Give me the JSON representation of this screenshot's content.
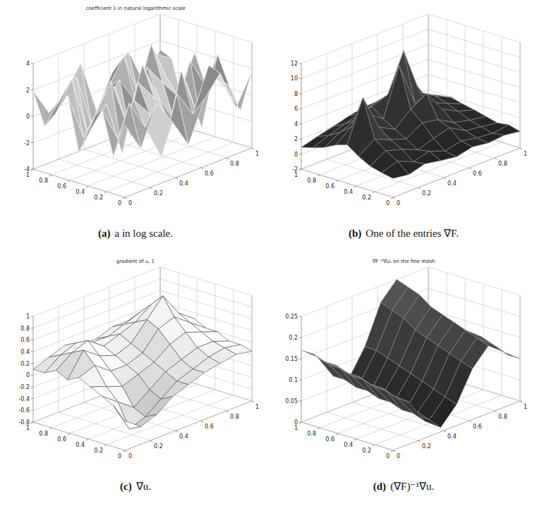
{
  "chart_data": [
    {
      "type": "surface",
      "title": "coefficient 1 in natural logarithmic scale",
      "caption_label": "(a)",
      "caption": "a in log scale.",
      "color": "#a8a8a8",
      "grid": true,
      "x": [
        0,
        0.125,
        0.25,
        0.375,
        0.5,
        0.625,
        0.75,
        0.875,
        1
      ],
      "y": [
        0,
        0.125,
        0.25,
        0.375,
        0.5,
        0.625,
        0.75,
        0.875,
        1
      ],
      "xlim": [
        0,
        1
      ],
      "ylim": [
        0,
        1
      ],
      "zlim": [
        -4,
        4
      ],
      "xticks": [
        0,
        0.2,
        0.4,
        0.6,
        0.8,
        1
      ],
      "yticks": [
        0,
        0.2,
        0.4,
        0.6,
        0.8,
        1
      ],
      "zticks": [
        -4,
        -2,
        0,
        2,
        4
      ],
      "z": [
        [
          1.5,
          -0.8,
          2.2,
          0.3,
          -1.9,
          1.1,
          2.6,
          -0.5,
          1.8
        ],
        [
          -1.2,
          2.4,
          0.1,
          -2.6,
          1.7,
          -0.3,
          2.9,
          0.8,
          -1.4
        ],
        [
          2.1,
          -0.6,
          1.9,
          0.4,
          -2.2,
          2.7,
          -1.1,
          1.5,
          0.2
        ],
        [
          0.3,
          1.8,
          -2.4,
          2.5,
          0.9,
          -1.6,
          1.2,
          -2.8,
          2.3
        ],
        [
          -1.7,
          0.6,
          2.8,
          -0.9,
          3.1,
          0.2,
          -2.1,
          2.0,
          -0.4
        ],
        [
          2.4,
          -1.3,
          0.7,
          1.6,
          -2.7,
          2.2,
          0.5,
          -1.0,
          1.9
        ],
        [
          0.8,
          2.9,
          -1.8,
          0.3,
          1.4,
          -0.7,
          3.2,
          0.1,
          -2.3
        ],
        [
          -0.5,
          1.1,
          2.3,
          -2.0,
          0.6,
          2.5,
          -1.4,
          1.7,
          0.9
        ],
        [
          1.9,
          -0.2,
          0.8,
          2.6,
          -1.5,
          1.0,
          2.1,
          -0.8,
          1.3
        ]
      ]
    },
    {
      "type": "surface",
      "caption_label": "(b)",
      "caption": "One of the entries ∇F.",
      "color": "#1e1e1e",
      "grid": true,
      "x": [
        0,
        0.125,
        0.25,
        0.375,
        0.5,
        0.625,
        0.75,
        0.875,
        1
      ],
      "y": [
        0,
        0.125,
        0.25,
        0.375,
        0.5,
        0.625,
        0.75,
        0.875,
        1
      ],
      "xlim": [
        0,
        1
      ],
      "ylim": [
        0,
        1
      ],
      "zlim": [
        -2,
        12
      ],
      "xticks": [
        0,
        0.2,
        0.4,
        0.6,
        0.8,
        1
      ],
      "yticks": [
        0,
        0.2,
        0.4,
        0.6,
        0.8,
        1
      ],
      "zticks": [
        -2,
        0,
        2,
        4,
        6,
        8,
        10,
        12
      ],
      "z": [
        [
          0.5,
          0.2,
          0.8,
          0.4,
          0.1,
          0.6,
          0.3,
          0.5,
          0.2
        ],
        [
          0.8,
          1.5,
          0.6,
          1.2,
          0.4,
          0.9,
          0.5,
          0.3,
          0.6
        ],
        [
          1.2,
          2.4,
          1.8,
          0.9,
          1.6,
          2.2,
          1.0,
          0.7,
          0.4
        ],
        [
          2.0,
          3.5,
          2.6,
          1.9,
          3.2,
          2.8,
          1.6,
          1.1,
          0.8
        ],
        [
          3.1,
          8.5,
          3.8,
          2.7,
          4.5,
          5.8,
          2.9,
          1.8,
          1.2
        ],
        [
          2.6,
          4.2,
          5.1,
          3.6,
          9.8,
          4.0,
          3.3,
          2.4,
          1.5
        ],
        [
          1.8,
          3.0,
          3.9,
          4.8,
          5.5,
          10.5,
          4.2,
          2.9,
          1.9
        ],
        [
          1.3,
          2.1,
          2.8,
          3.4,
          4.1,
          3.7,
          6.2,
          2.6,
          1.7
        ],
        [
          0.9,
          1.5,
          2.0,
          2.6,
          3.0,
          2.8,
          2.4,
          1.9,
          1.4
        ]
      ]
    },
    {
      "type": "surface",
      "title": "gradient of u, 1",
      "caption_label": "(c)",
      "caption": "∇u.",
      "color": "#f2f2f2",
      "grid": true,
      "x": [
        0,
        0.125,
        0.25,
        0.375,
        0.5,
        0.625,
        0.75,
        0.875,
        1
      ],
      "y": [
        0,
        0.125,
        0.25,
        0.375,
        0.5,
        0.625,
        0.75,
        0.875,
        1
      ],
      "xlim": [
        0,
        1
      ],
      "ylim": [
        0,
        1
      ],
      "zlim": [
        -0.8,
        1
      ],
      "xticks": [
        0,
        0.2,
        0.4,
        0.6,
        0.8,
        1
      ],
      "yticks": [
        0,
        0.2,
        0.4,
        0.6,
        0.8,
        1
      ],
      "zticks": [
        -0.8,
        -0.6,
        -0.4,
        -0.2,
        0,
        0.2,
        0.4,
        0.6,
        0.8,
        1
      ],
      "z": [
        [
          -0.3,
          -0.5,
          -0.4,
          -0.2,
          -0.1,
          0.0,
          0.05,
          0.1,
          0.05
        ],
        [
          -0.1,
          -0.6,
          -0.5,
          -0.3,
          -0.1,
          0.0,
          0.1,
          0.15,
          0.1
        ],
        [
          0.0,
          -0.2,
          -0.4,
          -0.2,
          0.0,
          0.1,
          0.2,
          0.2,
          0.1
        ],
        [
          0.1,
          0.0,
          -0.1,
          0.0,
          0.1,
          0.3,
          0.4,
          0.3,
          0.2
        ],
        [
          0.2,
          0.3,
          0.1,
          0.1,
          0.2,
          0.5,
          0.6,
          0.4,
          0.2
        ],
        [
          0.1,
          0.5,
          0.3,
          0.2,
          0.3,
          0.6,
          0.9,
          0.5,
          0.3
        ],
        [
          0.2,
          0.4,
          0.5,
          0.3,
          0.4,
          0.5,
          0.7,
          0.4,
          0.2
        ],
        [
          0.1,
          0.3,
          0.4,
          0.3,
          0.3,
          0.4,
          0.5,
          0.3,
          0.2
        ],
        [
          0.1,
          0.2,
          0.3,
          0.2,
          0.2,
          0.3,
          0.3,
          0.2,
          0.1
        ]
      ]
    },
    {
      "type": "surface",
      "title": "∇F⁻¹∇u₁ on the fine mesh",
      "caption_label": "(d)",
      "caption": "(∇F)⁻¹∇u.",
      "color": "#262626",
      "grid": true,
      "x": [
        0,
        0.125,
        0.25,
        0.375,
        0.5,
        0.625,
        0.75,
        0.875,
        1
      ],
      "y": [
        0,
        0.125,
        0.25,
        0.375,
        0.5,
        0.625,
        0.75,
        0.875,
        1
      ],
      "xlim": [
        0,
        1
      ],
      "ylim": [
        0,
        1
      ],
      "zlim": [
        0,
        0.25
      ],
      "xticks": [
        0,
        0.2,
        0.4,
        0.6,
        0.8,
        1
      ],
      "yticks": [
        0,
        0.2,
        0.4,
        0.6,
        0.8,
        1
      ],
      "zticks": [
        0,
        0.05,
        0.1,
        0.15,
        0.2,
        0.25
      ],
      "z": [
        [
          0.13,
          0.1,
          0.04,
          0.01,
          0.05,
          0.12,
          0.16,
          0.13,
          0.1
        ],
        [
          0.14,
          0.1,
          0.05,
          0.02,
          0.06,
          0.13,
          0.17,
          0.14,
          0.1
        ],
        [
          0.14,
          0.11,
          0.05,
          0.03,
          0.07,
          0.14,
          0.18,
          0.15,
          0.11
        ],
        [
          0.15,
          0.11,
          0.06,
          0.03,
          0.08,
          0.15,
          0.19,
          0.15,
          0.11
        ],
        [
          0.15,
          0.12,
          0.06,
          0.04,
          0.09,
          0.16,
          0.2,
          0.16,
          0.11
        ],
        [
          0.16,
          0.12,
          0.07,
          0.05,
          0.1,
          0.17,
          0.21,
          0.16,
          0.12
        ],
        [
          0.16,
          0.13,
          0.07,
          0.05,
          0.11,
          0.19,
          0.23,
          0.17,
          0.12
        ],
        [
          0.17,
          0.13,
          0.08,
          0.06,
          0.12,
          0.2,
          0.24,
          0.18,
          0.12
        ],
        [
          0.17,
          0.14,
          0.08,
          0.06,
          0.12,
          0.21,
          0.25,
          0.18,
          0.13
        ]
      ]
    }
  ]
}
